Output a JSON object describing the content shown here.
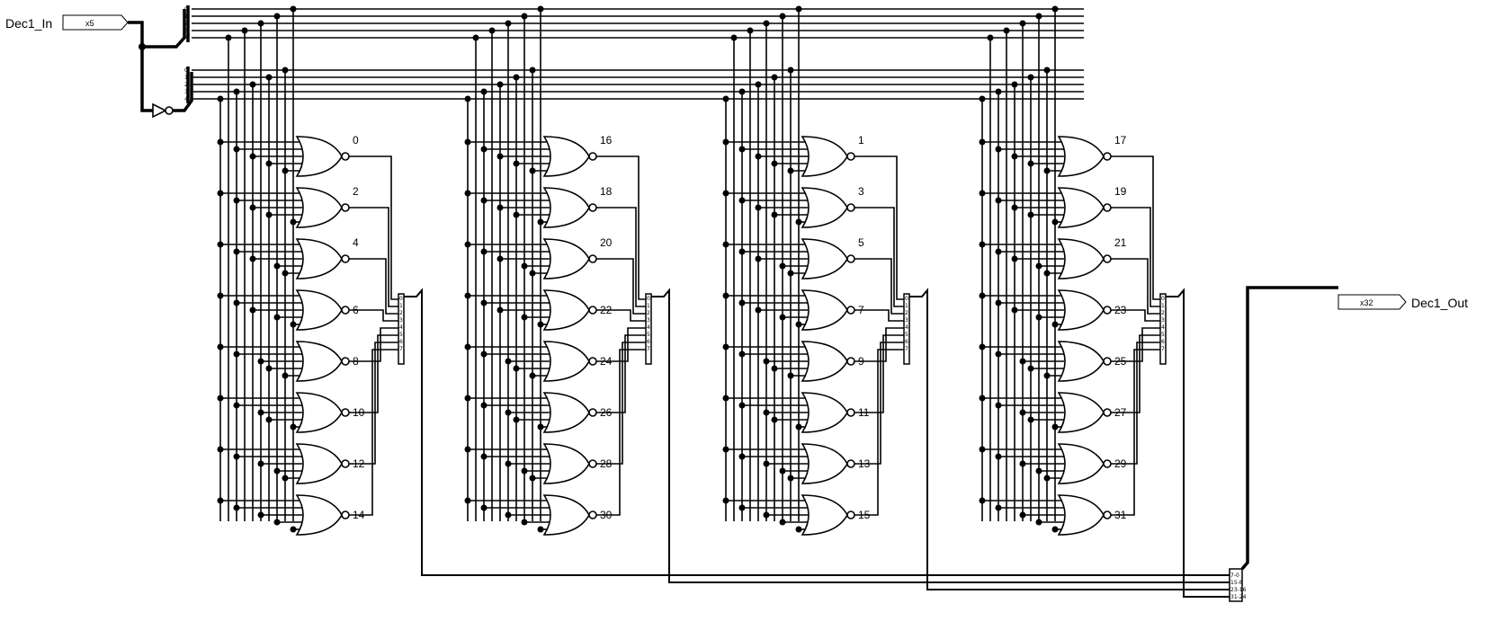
{
  "input_port": {
    "name": "Dec1_In",
    "width_tag": "x5"
  },
  "output_port": {
    "name": "Dec1_Out",
    "width_tag": "x32"
  },
  "bus_bits": [
    "0",
    "1",
    "2",
    "3",
    "4"
  ],
  "mux_bits": [
    "0",
    "1",
    "2",
    "3",
    "4",
    "5",
    "6",
    "7"
  ],
  "merge_labels": [
    "7-0",
    "15-8",
    "23-16",
    "31-24"
  ],
  "blocks": [
    {
      "outputs": [
        "0",
        "2",
        "4",
        "6",
        "8",
        "10",
        "12",
        "14"
      ]
    },
    {
      "outputs": [
        "16",
        "18",
        "20",
        "22",
        "24",
        "26",
        "28",
        "30"
      ]
    },
    {
      "outputs": [
        "1",
        "3",
        "5",
        "7",
        "9",
        "11",
        "13",
        "15"
      ]
    },
    {
      "outputs": [
        "17",
        "19",
        "21",
        "23",
        "25",
        "27",
        "29",
        "31"
      ]
    }
  ]
}
